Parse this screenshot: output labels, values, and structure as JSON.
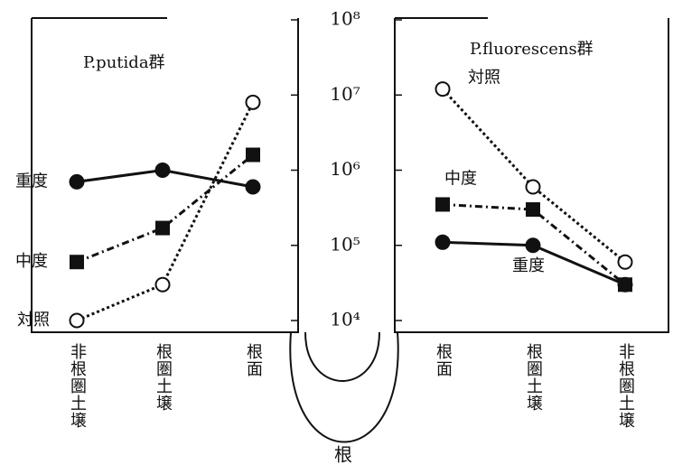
{
  "chart_data": [
    {
      "type": "line",
      "title": "P.putida群",
      "categories": [
        "非根圏土壌",
        "根圏土壌",
        "根面"
      ],
      "yscale": "log",
      "ylim": [
        10000,
        100000000
      ],
      "yticks": [
        {
          "value": 10000,
          "label": "10⁴"
        },
        {
          "value": 100000,
          "label": "10⁵"
        },
        {
          "value": 1000000,
          "label": "10⁶"
        },
        {
          "value": 10000000,
          "label": "10⁷"
        },
        {
          "value": 100000000,
          "label": "10⁸"
        }
      ],
      "series": [
        {
          "name": "重度",
          "color": "#111111",
          "marker": "circle-filled",
          "dash": "solid",
          "values": [
            700000,
            1000000,
            600000
          ]
        },
        {
          "name": "中度",
          "color": "#111111",
          "marker": "square-filled",
          "dash": "dashdot",
          "values": [
            60000,
            170000,
            1600000
          ]
        },
        {
          "name": "対照",
          "color": "#111111",
          "marker": "circle-open",
          "dash": "dotted",
          "values": [
            10000,
            30000,
            8000000
          ]
        }
      ]
    },
    {
      "type": "line",
      "title": "P.fluorescens群",
      "categories": [
        "根面",
        "根圏土壌",
        "非根圏土壌"
      ],
      "yscale": "log",
      "ylim": [
        10000,
        100000000
      ],
      "yticks": [
        {
          "value": 10000,
          "label": "10⁴"
        },
        {
          "value": 100000,
          "label": "10⁵"
        },
        {
          "value": 1000000,
          "label": "10⁶"
        },
        {
          "value": 10000000,
          "label": "10⁷"
        },
        {
          "value": 100000000,
          "label": "10⁸"
        }
      ],
      "series": [
        {
          "name": "対照",
          "color": "#111111",
          "marker": "circle-open",
          "dash": "dotted",
          "values": [
            12000000,
            600000,
            60000
          ]
        },
        {
          "name": "中度",
          "color": "#111111",
          "marker": "square-filled",
          "dash": "dashdot",
          "values": [
            350000,
            300000,
            30000
          ]
        },
        {
          "name": "重度",
          "color": "#111111",
          "marker": "circle-filled",
          "dash": "solid",
          "values": [
            110000,
            100000,
            30000
          ]
        }
      ]
    }
  ],
  "center_label": "根"
}
